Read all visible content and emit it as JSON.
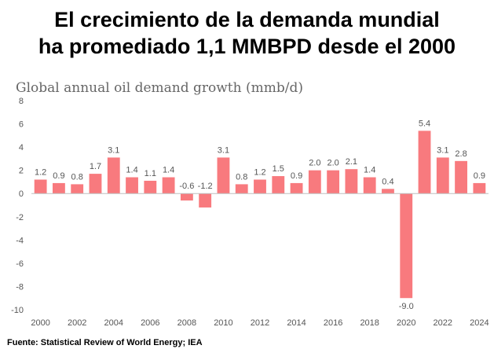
{
  "headline": {
    "line1": "El crecimiento de la demanda mundial",
    "line2": "ha promediado 1,1 MMBPD desde el 2000"
  },
  "source": "Fuente: Statistical Review of World Energy; IEA",
  "chart_data": {
    "type": "bar",
    "title": "Global annual oil demand growth (mmb/d)",
    "xlabel": "",
    "ylabel": "",
    "categories": [
      "2000",
      "2001",
      "2002",
      "2003",
      "2004",
      "2005",
      "2006",
      "2007",
      "2008",
      "2009",
      "2010",
      "2011",
      "2012",
      "2013",
      "2014",
      "2015",
      "2016",
      "2017",
      "2018",
      "2019",
      "2020",
      "2021",
      "2022",
      "2023",
      "2024"
    ],
    "values": [
      1.2,
      0.9,
      0.8,
      1.7,
      3.1,
      1.4,
      1.1,
      1.4,
      -0.6,
      -1.2,
      3.1,
      0.8,
      1.2,
      1.5,
      0.9,
      2.0,
      2.0,
      2.1,
      1.4,
      0.4,
      -9.0,
      5.4,
      3.1,
      2.8,
      0.9
    ],
    "data_labels": [
      "1.2",
      "0.9",
      "0.8",
      "1.7",
      "3.1",
      "1.4",
      "1.1",
      "1.4",
      "-0.6",
      "-1.2",
      "3.1",
      "0.8",
      "1.2",
      "1.5",
      "0.9",
      "2.0",
      "2.0",
      "2.1",
      "1.4",
      "0.4",
      "-9.0",
      "5.4",
      "3.1",
      "2.8",
      "0.9"
    ],
    "x_tick_labels": [
      "2000",
      "2002",
      "2004",
      "2006",
      "2008",
      "2010",
      "2012",
      "2014",
      "2016",
      "2018",
      "2020",
      "2022",
      "2024"
    ],
    "y_ticks": [
      8,
      6,
      4,
      2,
      0,
      -2,
      -4,
      -6,
      -8,
      -10
    ],
    "ylim": [
      -10,
      8
    ],
    "grid": false,
    "colors": {
      "bar": "#f87a7e",
      "axis": "#bfbfbf",
      "text": "#555555",
      "title": "#666666"
    }
  }
}
